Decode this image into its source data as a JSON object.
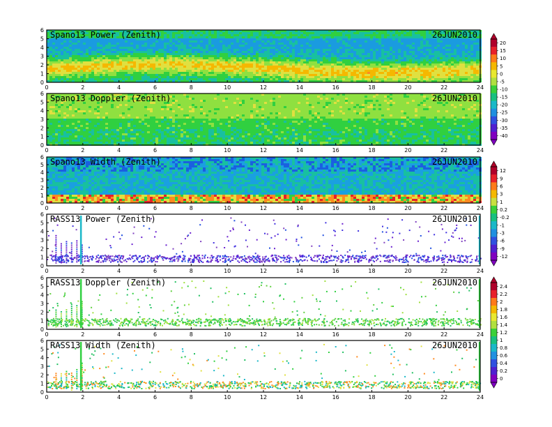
{
  "chart_data": [
    {
      "type": "heatmap",
      "title": "Spano13 Power (Zenith)",
      "date": "26JUN2010",
      "x": {
        "range": [
          0,
          24
        ],
        "ticks": [
          0,
          2,
          4,
          6,
          8,
          10,
          12,
          14,
          16,
          18,
          20,
          22,
          24
        ]
      },
      "y": {
        "range": [
          0,
          6
        ],
        "ticks": [
          0,
          1,
          2,
          3,
          4,
          5,
          6
        ]
      },
      "colorbar_group": "a"
    },
    {
      "type": "heatmap",
      "title": "Spano13 Doppler (Zenith)",
      "date": "26JUN2010",
      "x": {
        "range": [
          0,
          24
        ],
        "ticks": [
          0,
          2,
          4,
          6,
          8,
          10,
          12,
          14,
          16,
          18,
          20,
          22,
          24
        ]
      },
      "y": {
        "range": [
          0,
          6
        ],
        "ticks": [
          0,
          1,
          2,
          3,
          4,
          5,
          6
        ]
      },
      "colorbar_group": "a"
    },
    {
      "type": "heatmap",
      "title": "Spano13 Width (Zenith)",
      "date": "26JUN2010",
      "x": {
        "range": [
          0,
          24
        ],
        "ticks": [
          0,
          2,
          4,
          6,
          8,
          10,
          12,
          14,
          16,
          18,
          20,
          22,
          24
        ]
      },
      "y": {
        "range": [
          0,
          6
        ],
        "ticks": [
          0,
          1,
          2,
          3,
          4,
          5,
          6
        ]
      },
      "colorbar_group": "b"
    },
    {
      "type": "heatmap",
      "title": "RASS13 Power (Zenith)",
      "date": "26JUN2010",
      "x": {
        "range": [
          0,
          24
        ],
        "ticks": [
          0,
          2,
          4,
          6,
          8,
          10,
          12,
          14,
          16,
          18,
          20,
          22,
          24
        ]
      },
      "y": {
        "range": [
          0,
          6
        ],
        "ticks": [
          0,
          1,
          2,
          3,
          4,
          5,
          6
        ]
      },
      "colorbar_group": "b"
    },
    {
      "type": "heatmap",
      "title": "RASS13 Doppler (Zenith)",
      "date": "26JUN2010",
      "x": {
        "range": [
          0,
          24
        ],
        "ticks": [
          0,
          2,
          4,
          6,
          8,
          10,
          12,
          14,
          16,
          18,
          20,
          22,
          24
        ]
      },
      "y": {
        "range": [
          0,
          6
        ],
        "ticks": [
          0,
          1,
          2,
          3,
          4,
          5,
          6
        ]
      },
      "colorbar_group": "c"
    },
    {
      "type": "heatmap",
      "title": "RASS13 Width (Zenith)",
      "date": "26JUN2010",
      "x": {
        "range": [
          0,
          24
        ],
        "ticks": [
          0,
          2,
          4,
          6,
          8,
          10,
          12,
          14,
          16,
          18,
          20,
          22,
          24
        ]
      },
      "y": {
        "range": [
          0,
          6
        ],
        "ticks": [
          0,
          1,
          2,
          3,
          4,
          5,
          6
        ]
      },
      "colorbar_group": "c"
    }
  ],
  "colorbars": [
    {
      "group": "a",
      "labels": [
        "20",
        "15",
        "10",
        "5",
        "0",
        "-5",
        "-10",
        "-15",
        "-20",
        "-25",
        "-30",
        "-35",
        "-40"
      ],
      "colors": [
        "#b0002a",
        "#e8202a",
        "#ff7a1a",
        "#f5b800",
        "#e8e830",
        "#b0e040",
        "#3ad03a",
        "#18c080",
        "#1ab8c8",
        "#2090e0",
        "#3050e0",
        "#5020d0",
        "#8000c0"
      ]
    },
    {
      "group": "b",
      "labels": [
        "12",
        "9",
        "6",
        "3",
        "1",
        "0.2",
        "-0.2",
        "-1",
        "-3",
        "-6",
        "-9",
        "-12"
      ],
      "colors": [
        "#b0002a",
        "#e8202a",
        "#ff7a1a",
        "#f5b800",
        "#c8e040",
        "#3ad03a",
        "#18c080",
        "#1ab8c8",
        "#2090e0",
        "#3050e0",
        "#5020d0",
        "#8000c0"
      ]
    },
    {
      "group": "c",
      "labels": [
        "2.4",
        "2.2",
        "2",
        "1.8",
        "1.6",
        "1.4",
        "1.2",
        "1",
        "0.8",
        "0.6",
        "0.4",
        "0.2",
        "0"
      ],
      "colors": [
        "#b0002a",
        "#e8202a",
        "#ff7a1a",
        "#f5b800",
        "#e8e830",
        "#b0e040",
        "#3ad03a",
        "#18c080",
        "#1ab8c8",
        "#2090e0",
        "#3050e0",
        "#5020d0",
        "#8000c0"
      ]
    }
  ]
}
